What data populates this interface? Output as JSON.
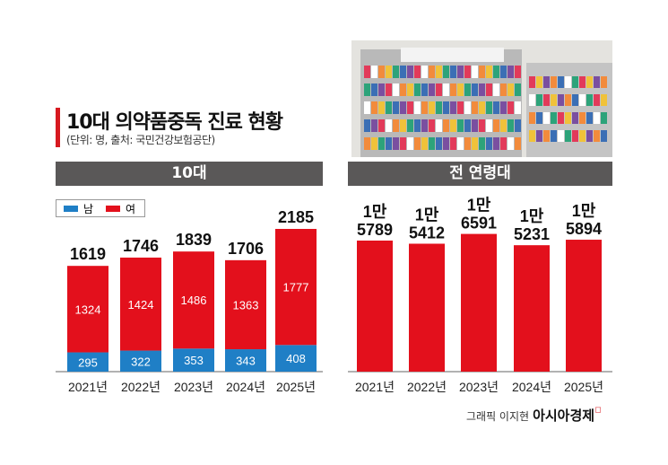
{
  "title": "10대 의약품중독 진료 현황",
  "subtitle": "(단위: 명, 출처: 국민건강보험공단)",
  "credit": {
    "text": "그래픽 이지현",
    "brand": "아시아경제"
  },
  "colors": {
    "male": "#1f7fc6",
    "female": "#e3101c",
    "header": "#5a5858",
    "accent": "#d71920"
  },
  "chart_data": [
    {
      "type": "bar",
      "stacked": true,
      "title": "10대",
      "categories": [
        "2021년",
        "2022년",
        "2023년",
        "2024년",
        "2025년"
      ],
      "series": [
        {
          "name": "남",
          "values": [
            295,
            322,
            353,
            343,
            408
          ]
        },
        {
          "name": "여",
          "values": [
            1324,
            1424,
            1486,
            1363,
            1777
          ]
        }
      ],
      "totals": [
        1619,
        1746,
        1839,
        1706,
        2185
      ],
      "legend": "top-left"
    },
    {
      "type": "bar",
      "title": "전 연령대",
      "categories": [
        "2021년",
        "2022년",
        "2023년",
        "2024년",
        "2025년"
      ],
      "values": [
        15789,
        15412,
        16591,
        15231,
        15894
      ],
      "labels": [
        [
          "1만",
          "5789"
        ],
        [
          "1만",
          "5412"
        ],
        [
          "1만",
          "6591"
        ],
        [
          "1만",
          "5231"
        ],
        [
          "1만",
          "5894"
        ]
      ]
    }
  ]
}
